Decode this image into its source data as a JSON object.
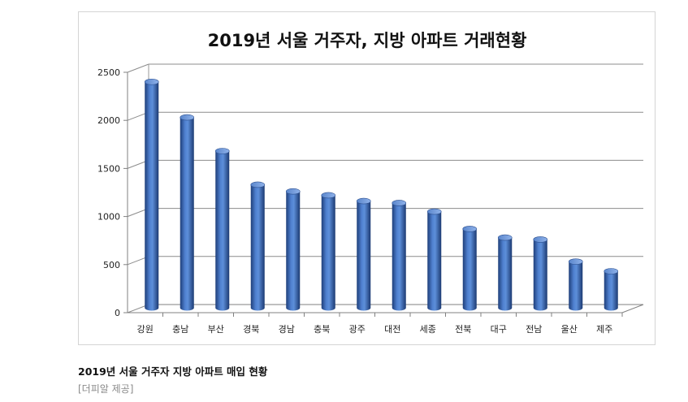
{
  "chart_data": {
    "type": "bar",
    "title": "2019년 서울 거주자, 지방 아파트 거래현황",
    "categories": [
      "강원",
      "충남",
      "부산",
      "경북",
      "경남",
      "충북",
      "광주",
      "대전",
      "세종",
      "전북",
      "대구",
      "전남",
      "울산",
      "제주"
    ],
    "values": [
      2350,
      1980,
      1630,
      1280,
      1210,
      1170,
      1110,
      1090,
      1000,
      820,
      730,
      710,
      480,
      380
    ],
    "yticks": [
      "0",
      "500",
      "1000",
      "1500",
      "2000",
      "2500"
    ],
    "ylim": [
      0,
      2500
    ],
    "grid": true,
    "bar_color": "#3f6fbf"
  },
  "caption": {
    "text": "2019년 서울 거주자 지방 아파트 매입 현황",
    "source": "[더피알 제공]"
  }
}
